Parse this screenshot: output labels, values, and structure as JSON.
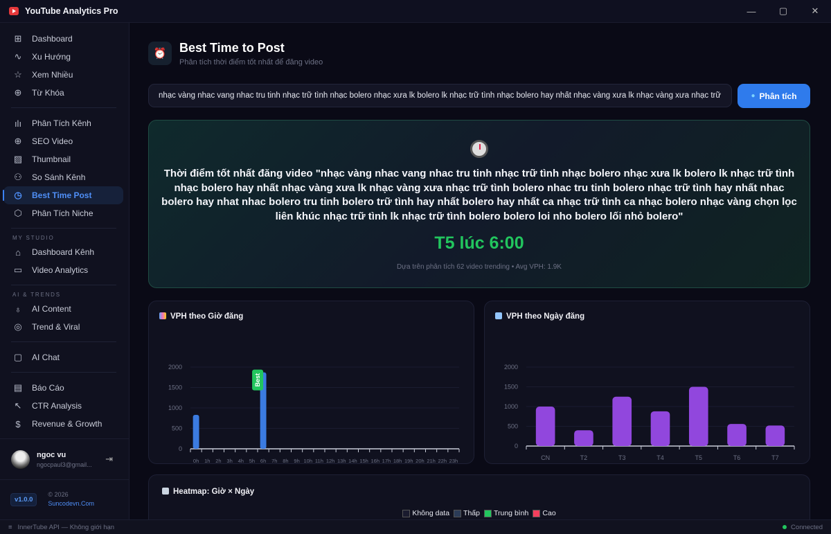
{
  "app": {
    "title": "YouTube Analytics Pro",
    "window_controls": [
      "minimize",
      "maximize",
      "close"
    ]
  },
  "sidebar": {
    "groups": [
      {
        "label": "",
        "items": [
          {
            "label": "Dashboard",
            "icon": "grid-icon",
            "glyph": "⊞"
          },
          {
            "label": "Xu Hướng",
            "icon": "activity-icon",
            "glyph": "∿"
          },
          {
            "label": "Xem Nhiều",
            "icon": "star-icon",
            "glyph": "☆"
          },
          {
            "label": "Từ Khóa",
            "icon": "search-plus-icon",
            "glyph": "⊕"
          }
        ]
      },
      {
        "label": "",
        "items": [
          {
            "label": "Phân Tích Kênh",
            "icon": "bar-chart-icon",
            "glyph": "ılı"
          },
          {
            "label": "SEO Video",
            "icon": "search-plus-icon",
            "glyph": "⊕"
          },
          {
            "label": "Thumbnail",
            "icon": "image-icon",
            "glyph": "▨"
          },
          {
            "label": "So Sánh Kênh",
            "icon": "user-plus-icon",
            "glyph": "⚇"
          },
          {
            "label": "Best Time Post",
            "icon": "clock-icon",
            "glyph": "◷",
            "active": true
          },
          {
            "label": "Phân Tích Niche",
            "icon": "box-icon",
            "glyph": "⬡"
          }
        ]
      },
      {
        "label": "MY STUDIO",
        "items": [
          {
            "label": "Dashboard Kênh",
            "icon": "home-icon",
            "glyph": "⌂"
          },
          {
            "label": "Video Analytics",
            "icon": "video-icon",
            "glyph": "▭"
          }
        ]
      },
      {
        "label": "AI & TRENDS",
        "items": [
          {
            "label": "AI Content",
            "icon": "lightbulb-icon",
            "glyph": "♁"
          },
          {
            "label": "Trend & Viral",
            "icon": "target-icon",
            "glyph": "◎"
          }
        ]
      },
      {
        "label": "",
        "items": [
          {
            "label": "AI Chat",
            "icon": "chat-icon",
            "glyph": "▢"
          }
        ]
      },
      {
        "label": "",
        "items": [
          {
            "label": "Báo Cáo",
            "icon": "file-icon",
            "glyph": "▤"
          },
          {
            "label": "CTR Analysis",
            "icon": "cursor-icon",
            "glyph": "↖"
          },
          {
            "label": "Revenue & Growth",
            "icon": "dollar-icon",
            "glyph": "$"
          }
        ]
      }
    ],
    "user": {
      "name": "ngoc vu",
      "email": "ngocpaul3@gmail..."
    },
    "version": "v1.0.0",
    "copyright": "© 2026",
    "site": "Suncodevn.Com"
  },
  "status": {
    "api": "InnerTube API — Không giới hạn",
    "connection": "Connected"
  },
  "page": {
    "title": "Best Time to Post",
    "subtitle": "Phân tích thời điểm tốt nhất để đăng video"
  },
  "search": {
    "value": "nhạc vàng nhac vang nhac tru tinh nhạc trữ tình nhạc bolero nhạc xưa lk bolero lk nhạc trữ tình nhạc bolero hay nhất nhạc vàng xưa lk nhạc vàng xưa nhạc trữ tình bolero nhac tru tinh bolero nhạc trữ tình hay nhất nhac bolero hay nhat nhac bolero tru tinh bolero trữ tình hay nhất bolero hay nhất ca nhạc trữ tình ca nhạc bolero nhạc vàng chọn lọc liên khúc nhạc trữ tình lk nhạc trữ tình bolero bolero loi nho bolero lối nhỏ bolero",
    "button": "Phân tích"
  },
  "result": {
    "title": "Thời điểm tốt nhất đăng video \"nhạc vàng nhac vang nhac tru tinh nhạc trữ tình nhạc bolero nhạc xưa lk bolero lk nhạc trữ tình nhạc bolero hay nhất nhạc vàng xưa lk nhạc vàng xưa nhạc trữ tình bolero nhac tru tinh bolero nhạc trữ tình hay nhất nhac bolero hay nhat nhac bolero tru tinh bolero trữ tình hay nhất bolero hay nhất ca nhạc trữ tình ca nhạc bolero nhạc vàng chọn lọc liên khúc nhạc trữ tình lk nhạc trữ tình bolero bolero loi nho bolero lối nhỏ bolero\"",
    "best_time": "T5 lúc 6:00",
    "note": "Dựa trên phân tích 62 video trending • Avg VPH: 1.9K"
  },
  "chart_data": [
    {
      "type": "bar",
      "title": "VPH theo Giờ đăng",
      "categories": [
        "0h",
        "1h",
        "2h",
        "3h",
        "4h",
        "5h",
        "6h",
        "7h",
        "8h",
        "9h",
        "10h",
        "11h",
        "12h",
        "13h",
        "14h",
        "15h",
        "16h",
        "17h",
        "18h",
        "19h",
        "20h",
        "21h",
        "22h",
        "23h"
      ],
      "values": [
        830,
        0,
        0,
        0,
        0,
        0,
        1870,
        0,
        0,
        0,
        0,
        0,
        0,
        0,
        0,
        0,
        0,
        0,
        0,
        0,
        0,
        0,
        0,
        0
      ],
      "yticks": [
        0,
        500,
        1000,
        1500,
        2000
      ],
      "ylim": [
        0,
        2000
      ],
      "color": "#3b7be0",
      "best_label": "Best",
      "best_index": 6,
      "grid": true
    },
    {
      "type": "bar",
      "title": "VPH theo Ngày đăng",
      "categories": [
        "CN",
        "T2",
        "T3",
        "T4",
        "T5",
        "T6",
        "T7"
      ],
      "values": [
        1000,
        400,
        1250,
        880,
        1500,
        560,
        520
      ],
      "yticks": [
        0,
        500,
        1000,
        1500,
        2000
      ],
      "ylim": [
        0,
        2000
      ],
      "color": "#9147dd",
      "grid": true
    }
  ],
  "heatmap": {
    "title": "Heatmap: Giờ × Ngày",
    "legend": [
      {
        "label": "Không data",
        "color": "#1a1b2e"
      },
      {
        "label": "Thấp",
        "color": "#2b3b57"
      },
      {
        "label": "Trung bình",
        "color": "#22c55e"
      },
      {
        "label": "Cao",
        "color": "#f43f5e"
      }
    ]
  }
}
